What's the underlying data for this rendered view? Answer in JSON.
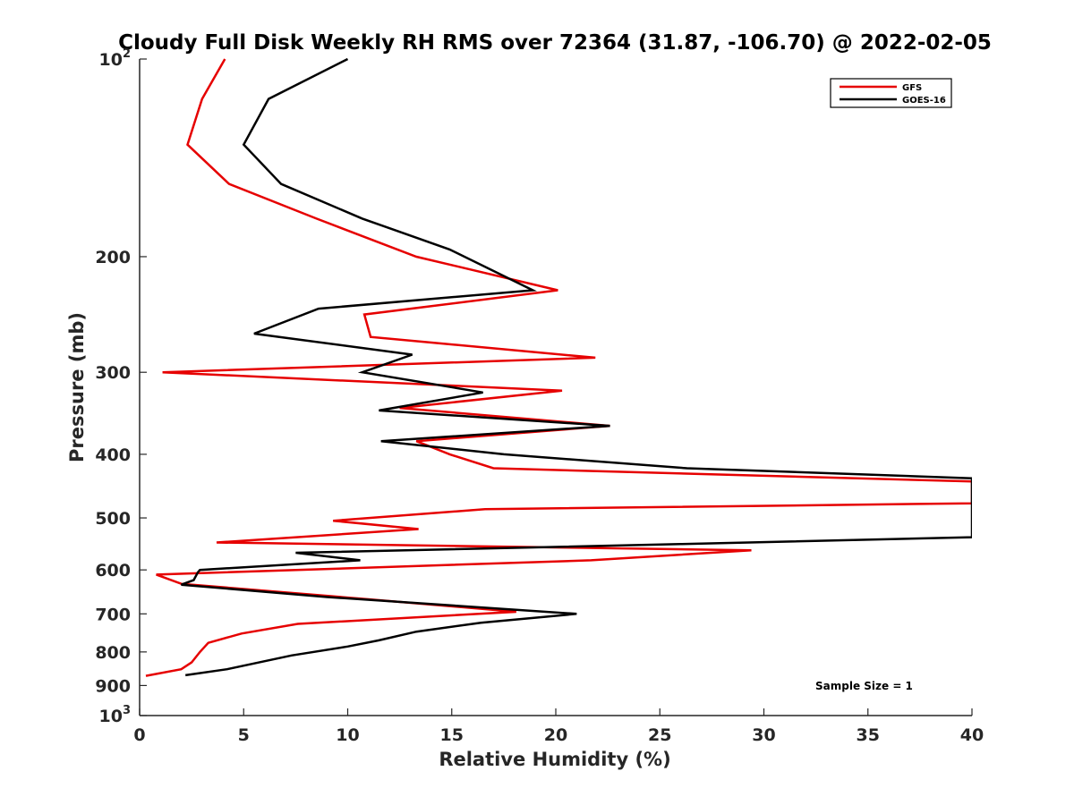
{
  "chart_data": {
    "type": "line",
    "title": "Cloudy Full Disk Weekly RH RMS over 72364 (31.87, -106.70) @ 2022-02-05",
    "xlabel": "Relative Humidity (%)",
    "ylabel": "Pressure (mb)",
    "xlim": [
      0,
      40
    ],
    "ylim": [
      100,
      1000
    ],
    "y_scale": "log",
    "y_reversed": true,
    "grid": false,
    "legend_position": "top-right",
    "x_ticks": [
      "0",
      "5",
      "10",
      "15",
      "20",
      "25",
      "30",
      "35",
      "40"
    ],
    "y_ticks": [
      {
        "value": 100,
        "base": "10",
        "exp": "2"
      },
      {
        "value": 200,
        "label": "200"
      },
      {
        "value": 300,
        "label": "300"
      },
      {
        "value": 400,
        "label": "400"
      },
      {
        "value": 500,
        "label": "500"
      },
      {
        "value": 600,
        "label": "600"
      },
      {
        "value": 700,
        "label": "700"
      },
      {
        "value": 800,
        "label": "800"
      },
      {
        "value": 900,
        "label": "900"
      },
      {
        "value": 1000,
        "base": "10",
        "exp": "3"
      }
    ],
    "series": [
      {
        "name": "GFS",
        "color": "#e60000",
        "points": [
          [
            4.1,
            100
          ],
          [
            3.0,
            115
          ],
          [
            2.3,
            135
          ],
          [
            4.3,
            155
          ],
          [
            8.5,
            175
          ],
          [
            13.3,
            200
          ],
          [
            20.1,
            225
          ],
          [
            10.8,
            245
          ],
          [
            11.1,
            265
          ],
          [
            21.9,
            285
          ],
          [
            1.1,
            300
          ],
          [
            20.3,
            320
          ],
          [
            12.5,
            340
          ],
          [
            22.6,
            362
          ],
          [
            13.3,
            382
          ],
          [
            14.9,
            400
          ],
          [
            17.0,
            420
          ],
          [
            40,
            440
          ],
          [
            40,
            475
          ],
          [
            16.6,
            485
          ],
          [
            9.3,
            505
          ],
          [
            13.4,
            520
          ],
          [
            3.7,
            545
          ],
          [
            29.4,
            560
          ],
          [
            21.7,
            580
          ],
          [
            0.8,
            610
          ],
          [
            2.0,
            630
          ],
          [
            11.0,
            665
          ],
          [
            18.1,
            695
          ],
          [
            7.6,
            725
          ],
          [
            4.9,
            750
          ],
          [
            3.3,
            775
          ],
          [
            2.9,
            800
          ],
          [
            2.5,
            830
          ],
          [
            2.0,
            850
          ],
          [
            0.3,
            870
          ]
        ]
      },
      {
        "name": "GOES-16",
        "color": "#000000",
        "points": [
          [
            10.0,
            100
          ],
          [
            6.2,
            115
          ],
          [
            5.0,
            135
          ],
          [
            6.8,
            155
          ],
          [
            10.7,
            175
          ],
          [
            14.9,
            195
          ],
          [
            18.9,
            225
          ],
          [
            8.6,
            240
          ],
          [
            5.5,
            262
          ],
          [
            13.1,
            282
          ],
          [
            10.7,
            300
          ],
          [
            16.5,
            322
          ],
          [
            11.5,
            343
          ],
          [
            22.6,
            362
          ],
          [
            11.6,
            382
          ],
          [
            17.5,
            400
          ],
          [
            26.3,
            420
          ],
          [
            40,
            435
          ],
          [
            40,
            535
          ],
          [
            26.0,
            548
          ],
          [
            7.5,
            565
          ],
          [
            10.6,
            580
          ],
          [
            2.9,
            600
          ],
          [
            2.8,
            605
          ],
          [
            2.6,
            622
          ],
          [
            2.0,
            632
          ],
          [
            9.0,
            660
          ],
          [
            21.0,
            700
          ],
          [
            16.4,
            722
          ],
          [
            13.3,
            745
          ],
          [
            11.5,
            768
          ],
          [
            10.0,
            785
          ],
          [
            7.3,
            810
          ],
          [
            4.2,
            850
          ],
          [
            2.2,
            868
          ]
        ]
      }
    ],
    "annotation": "Sample Size = 1"
  }
}
